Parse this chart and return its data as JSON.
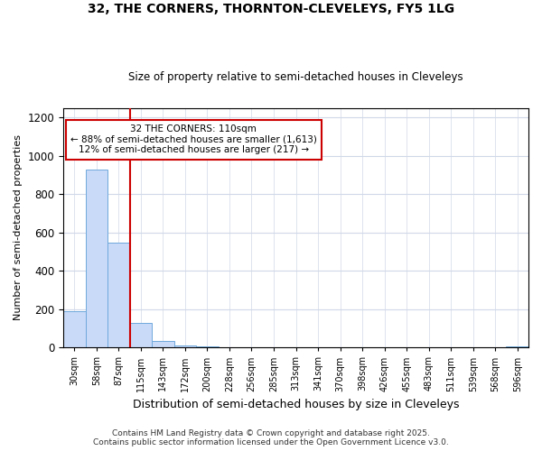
{
  "title1": "32, THE CORNERS, THORNTON-CLEVELEYS, FY5 1LG",
  "title2": "Size of property relative to semi-detached houses in Cleveleys",
  "xlabel": "Distribution of semi-detached houses by size in Cleveleys",
  "ylabel": "Number of semi-detached properties",
  "categories": [
    "30sqm",
    "58sqm",
    "87sqm",
    "115sqm",
    "143sqm",
    "172sqm",
    "200sqm",
    "228sqm",
    "256sqm",
    "285sqm",
    "313sqm",
    "341sqm",
    "370sqm",
    "398sqm",
    "426sqm",
    "455sqm",
    "483sqm",
    "511sqm",
    "539sqm",
    "568sqm",
    "596sqm"
  ],
  "values": [
    190,
    930,
    545,
    130,
    35,
    10,
    4,
    2,
    1,
    0,
    0,
    0,
    0,
    0,
    0,
    0,
    0,
    0,
    0,
    0,
    5
  ],
  "bar_color": "#c9daf8",
  "bar_edge_color": "#6fa8dc",
  "vline_color": "#cc0000",
  "vline_index": 3,
  "annotation_line1": "32 THE CORNERS: 110sqm",
  "annotation_line2": "← 88% of semi-detached houses are smaller (1,613)",
  "annotation_line3": "12% of semi-detached houses are larger (217) →",
  "annotation_box_color": "#cc0000",
  "ylim": [
    0,
    1250
  ],
  "yticks": [
    0,
    200,
    400,
    600,
    800,
    1000,
    1200
  ],
  "footer": "Contains HM Land Registry data © Crown copyright and database right 2025.\nContains public sector information licensed under the Open Government Licence v3.0.",
  "background_color": "#ffffff",
  "plot_bg_color": "#ffffff",
  "grid_color": "#d0d8e8"
}
